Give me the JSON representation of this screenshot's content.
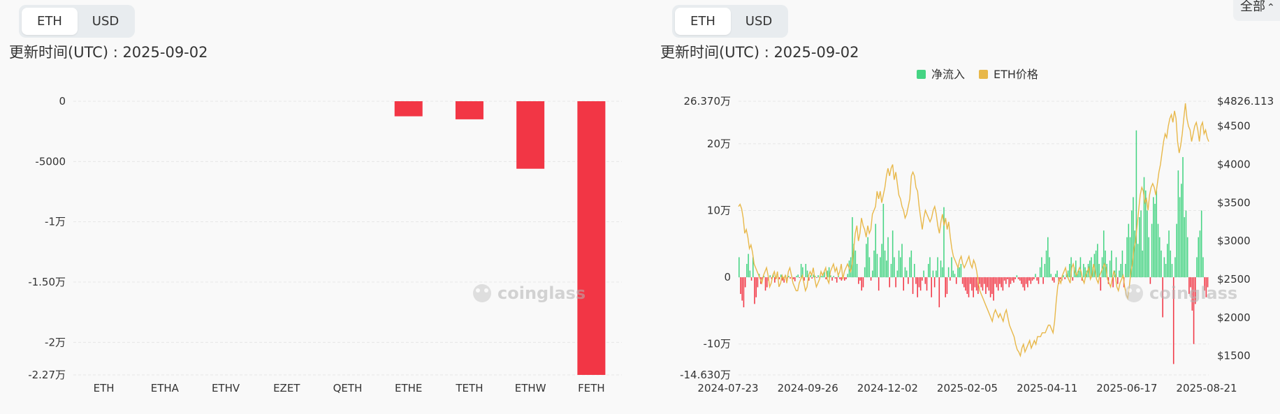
{
  "left": {
    "toggle": {
      "options": [
        "ETH",
        "USD"
      ],
      "active": "ETH"
    },
    "update_label": "更新时间(UTC) : 2025-09-02",
    "watermark": "coinglass"
  },
  "right": {
    "toggle": {
      "options": [
        "ETH",
        "USD"
      ],
      "active": "ETH"
    },
    "update_label": "更新时间(UTC) : 2025-09-02",
    "range_select": "全部",
    "watermark": "coinglass"
  },
  "colors": {
    "negative": "#f23645",
    "positive": "#45d483",
    "price": "#e8b84a"
  },
  "chart_data": [
    {
      "type": "bar",
      "categories": [
        "ETH",
        "ETHA",
        "ETHV",
        "EZET",
        "QETH",
        "ETHE",
        "TETH",
        "ETHW",
        "FETH"
      ],
      "values": [
        0,
        0,
        0,
        0,
        0,
        -1250,
        -1500,
        -5600,
        -22700
      ],
      "y_ticks": [
        "0",
        "-5000",
        "-1万",
        "-1.50万",
        "-2万",
        "-2.27万"
      ],
      "y_tick_values": [
        0,
        -5000,
        -10000,
        -15000,
        -20000,
        -22700
      ],
      "ylim": [
        -22700,
        0
      ],
      "grid": true
    },
    {
      "type": "bar+line",
      "legend": [
        "净流入",
        "ETH价格"
      ],
      "legend_placement": "top-center",
      "x_ticks": [
        "2024-07-23",
        "2024-09-26",
        "2024-12-02",
        "2025-02-05",
        "2025-04-11",
        "2025-06-17",
        "2025-08-21"
      ],
      "y_left_ticks": [
        "26.370万",
        "20万",
        "10万",
        "0",
        "-10万",
        "-14.630万"
      ],
      "y_left_tick_values": [
        263700,
        200000,
        100000,
        0,
        -100000,
        -146300
      ],
      "y_left_lim": [
        -146300,
        263700
      ],
      "y_right_ticks": [
        "$4826.113",
        "$4500",
        "$4000",
        "$3500",
        "$3000",
        "$2500",
        "$2000",
        "$1500"
      ],
      "y_right_tick_values": [
        4826.113,
        4500,
        4000,
        3500,
        3000,
        2500,
        2000,
        1500
      ],
      "y_right_lim": [
        1250,
        4826.113
      ],
      "series": [
        {
          "name": "净流入",
          "axis": "left",
          "values": [
            30000,
            -25000,
            -35000,
            -45000,
            -15000,
            20000,
            35000,
            10000,
            -5000,
            30000,
            -40000,
            -30000,
            -15000,
            5000,
            -10000,
            -5000,
            2000,
            -20000,
            -15000,
            -5000,
            3000,
            -3000,
            5000,
            -8000,
            -2000,
            2000,
            -3000,
            4000,
            -5000,
            -8000,
            3000,
            -5000,
            2000,
            -2000,
            1000,
            -3000,
            -6000,
            2000,
            4000,
            -1000,
            20000,
            15000,
            -5000,
            20000,
            10000,
            -5000,
            3000,
            -2000,
            4000,
            2000,
            -1000,
            3000,
            -2000,
            2000,
            5000,
            8000,
            -3000,
            10000,
            15000,
            3000,
            -5000,
            2000,
            -2000,
            -8000,
            3000,
            -3000,
            -5000,
            2000,
            -5000,
            -3000,
            5000,
            25000,
            30000,
            90000,
            50000,
            40000,
            20000,
            -10000,
            -5000,
            -20000,
            -15000,
            15000,
            50000,
            60000,
            30000,
            -5000,
            10000,
            40000,
            80000,
            35000,
            -20000,
            30000,
            50000,
            110000,
            40000,
            25000,
            60000,
            -15000,
            20000,
            70000,
            30000,
            -15000,
            10000,
            40000,
            30000,
            50000,
            -20000,
            15000,
            10000,
            -10000,
            30000,
            40000,
            -25000,
            20000,
            -10000,
            -30000,
            -15000,
            -20000,
            -5000,
            10000,
            -10000,
            -20000,
            20000,
            30000,
            -30000,
            10000,
            -15000,
            10000,
            30000,
            -45000,
            25000,
            15000,
            105000,
            -30000,
            -25000,
            15000,
            -5000,
            30000,
            10000,
            5000,
            -10000,
            15000,
            15000,
            20000,
            -10000,
            -15000,
            -20000,
            -25000,
            -30000,
            -10000,
            -20000,
            -30000,
            -15000,
            -20000,
            -25000,
            -10000,
            -15000,
            -20000,
            -10000,
            -25000,
            -15000,
            -20000,
            -30000,
            -25000,
            -35000,
            -10000,
            -15000,
            -20000,
            -10000,
            -15000,
            -20000,
            -5000,
            -10000,
            -3000,
            -15000,
            -10000,
            -5000,
            -8000,
            -3000,
            3000,
            -3000,
            -5000,
            -10000,
            -15000,
            -20000,
            -10000,
            -15000,
            -5000,
            -10000,
            -5000,
            -3000,
            5000,
            -5000,
            -10000,
            15000,
            30000,
            -10000,
            20000,
            40000,
            60000,
            30000,
            5000,
            -5000,
            -8000,
            5000,
            10000,
            -10000,
            -3000,
            -5000,
            3000,
            -3000,
            5000,
            10000,
            20000,
            30000,
            -5000,
            15000,
            25000,
            5000,
            10000,
            30000,
            -5000,
            20000,
            15000,
            10000,
            20000,
            25000,
            30000,
            15000,
            35000,
            40000,
            50000,
            20000,
            -20000,
            30000,
            70000,
            40000,
            20000,
            -10000,
            25000,
            40000,
            -15000,
            10000,
            30000,
            -10000,
            10000,
            20000,
            40000,
            -15000,
            20000,
            60000,
            80000,
            60000,
            100000,
            120000,
            70000,
            220000,
            50000,
            90000,
            100000,
            40000,
            150000,
            130000,
            100000,
            60000,
            -10000,
            80000,
            120000,
            110000,
            130000,
            80000,
            60000,
            40000,
            -60000,
            30000,
            20000,
            50000,
            70000,
            40000,
            20000,
            -130000,
            30000,
            80000,
            160000,
            120000,
            140000,
            180000,
            90000,
            100000,
            60000,
            -25000,
            -15000,
            -50000,
            -100000,
            -40000,
            30000,
            60000,
            70000,
            100000,
            30000,
            -20000,
            -30000,
            -15000
          ]
        },
        {
          "name": "ETH价格",
          "axis": "right",
          "values": [
            3450,
            3480,
            3420,
            3300,
            3100,
            3150,
            3050,
            2900,
            2950,
            2850,
            2700,
            2650,
            2600,
            2550,
            2500,
            2450,
            2550,
            2600,
            2650,
            2550,
            2400,
            2450,
            2550,
            2600,
            2500,
            2600,
            2400,
            2450,
            2550,
            2500,
            2550,
            2450,
            2600,
            2650,
            2550,
            2450,
            2400,
            2350,
            2350,
            2450,
            2500,
            2550,
            2450,
            2350,
            2400,
            2550,
            2600,
            2550,
            2650,
            2500,
            2400,
            2450,
            2500,
            2600,
            2550,
            2600,
            2650,
            2500,
            2450,
            2600,
            2650,
            2700,
            2600,
            2650,
            2550,
            2600,
            2700,
            2500,
            2600,
            2650,
            2700,
            2650,
            2600,
            2700,
            2900,
            3100,
            3200,
            3000,
            3100,
            3300,
            3200,
            3150,
            3050,
            3200,
            3100,
            3150,
            3350,
            3400,
            3450,
            3650,
            3550,
            3650,
            3500,
            3600,
            3700,
            3850,
            3950,
            3850,
            3950,
            4000,
            3800,
            3900,
            3750,
            3600,
            3550,
            3450,
            3400,
            3300,
            3350,
            3450,
            3550,
            3850,
            3900,
            3850,
            3700,
            3650,
            3450,
            3300,
            3150,
            3300,
            3400,
            3350,
            3300,
            3250,
            3300,
            3400,
            3450,
            3350,
            3200,
            3100,
            3250,
            3350,
            3200,
            3300,
            3150,
            3250,
            3050,
            2900,
            2800,
            2750,
            2700,
            2650,
            2750,
            2800,
            2700,
            2650,
            2700,
            2750,
            2800,
            2700,
            2650,
            2750,
            2700,
            2600,
            2450,
            2350,
            2300,
            2250,
            2200,
            2150,
            2100,
            2050,
            2000,
            1950,
            2050,
            2100,
            2050,
            2000,
            2050,
            2000,
            1950,
            2050,
            2100,
            2000,
            1900,
            1850,
            1800,
            1750,
            1650,
            1580,
            1550,
            1500,
            1600,
            1650,
            1550,
            1600,
            1650,
            1700,
            1600,
            1650,
            1700,
            1650,
            1750,
            1750,
            1750,
            1800,
            1800,
            1800,
            1850,
            1900,
            1900,
            1850,
            1800,
            1950,
            2200,
            2400,
            2500,
            2450,
            2550,
            2600,
            2650,
            2550,
            2500,
            2450,
            2650,
            2700,
            2600,
            2550,
            2600,
            2650,
            2600,
            2500,
            2450,
            2550,
            2600,
            2650,
            2500,
            2550,
            2700,
            2600,
            2500,
            2450,
            2550,
            2600,
            2650,
            2700,
            2650,
            2500,
            2450,
            2400,
            2500,
            2600,
            2550,
            2400,
            2350,
            2450,
            2500,
            2550,
            2400,
            2300,
            2250,
            2400,
            2600,
            2700,
            2900,
            3000,
            3200,
            3400,
            3600,
            3700,
            3650,
            3500,
            3550,
            3400,
            3600,
            3700,
            3750,
            3700,
            3600,
            3750,
            3900,
            4000,
            4150,
            4300,
            4400,
            4350,
            4500,
            4600,
            4650,
            4550,
            4700,
            4600,
            4300,
            4150,
            4250,
            4400,
            4600,
            4800,
            4600,
            4500,
            4450,
            4300,
            4400,
            4500,
            4550,
            4450,
            4300,
            4500,
            4550,
            4400,
            4450,
            4350,
            4300
          ]
        }
      ],
      "grid": true
    }
  ]
}
